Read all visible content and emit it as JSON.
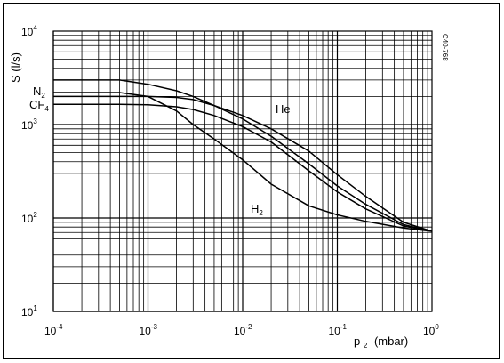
{
  "chart_data": {
    "type": "line",
    "title": "",
    "xlabel": "p",
    "xlabel_sub": "2",
    "xlabel_unit": "(mbar)",
    "ylabel": "S (l/s)",
    "code": "C40-768",
    "x_scale": "log",
    "y_scale": "log",
    "xlim": [
      0.0001,
      1
    ],
    "ylim": [
      10,
      10000
    ],
    "grid": true,
    "legend": "inline labels",
    "x_ticks": [
      {
        "value": 0.0001,
        "base": "10",
        "exp": "-4"
      },
      {
        "value": 0.001,
        "base": "10",
        "exp": "-3"
      },
      {
        "value": 0.01,
        "base": "10",
        "exp": "-2"
      },
      {
        "value": 0.1,
        "base": "10",
        "exp": "-1"
      },
      {
        "value": 1,
        "base": "10",
        "exp": "0"
      }
    ],
    "y_ticks": [
      {
        "value": 10,
        "base": "10",
        "exp": "1"
      },
      {
        "value": 100,
        "base": "10",
        "exp": "2"
      },
      {
        "value": 1000,
        "base": "10",
        "exp": "3"
      },
      {
        "value": 10000,
        "base": "10",
        "exp": "4"
      }
    ],
    "series": [
      {
        "name": "N2",
        "label_main": "N",
        "label_sub": "2",
        "x": [
          0.0001,
          0.0005,
          0.001,
          0.002,
          0.003,
          0.005,
          0.01,
          0.02,
          0.05,
          0.1,
          0.2,
          0.5,
          1
        ],
        "y": [
          3000,
          3000,
          2700,
          2300,
          2000,
          1600,
          1150,
          750,
          380,
          220,
          140,
          85,
          72
        ]
      },
      {
        "name": "CF4",
        "label_main": "CF",
        "label_sub": "4",
        "x": [
          0.0001,
          0.0005,
          0.001,
          0.002,
          0.003,
          0.005,
          0.01,
          0.02,
          0.05,
          0.1,
          0.2,
          0.5,
          1
        ],
        "y": [
          1650,
          1650,
          1630,
          1550,
          1450,
          1250,
          950,
          650,
          320,
          190,
          125,
          82,
          72
        ]
      },
      {
        "name": "He",
        "x": [
          0.0001,
          0.0005,
          0.001,
          0.002,
          0.003,
          0.005,
          0.01,
          0.02,
          0.05,
          0.1,
          0.2,
          0.5,
          1
        ],
        "y": [
          2000,
          2000,
          2000,
          1950,
          1850,
          1600,
          1250,
          900,
          520,
          290,
          170,
          90,
          72
        ]
      },
      {
        "name": "H2",
        "label_main": "H",
        "label_sub": "2",
        "x": [
          0.0001,
          0.0005,
          0.001,
          0.002,
          0.003,
          0.005,
          0.01,
          0.02,
          0.05,
          0.1,
          0.2,
          0.5,
          1
        ],
        "y": [
          2200,
          2200,
          2000,
          1400,
          1000,
          700,
          420,
          230,
          135,
          108,
          92,
          78,
          72
        ]
      }
    ]
  }
}
